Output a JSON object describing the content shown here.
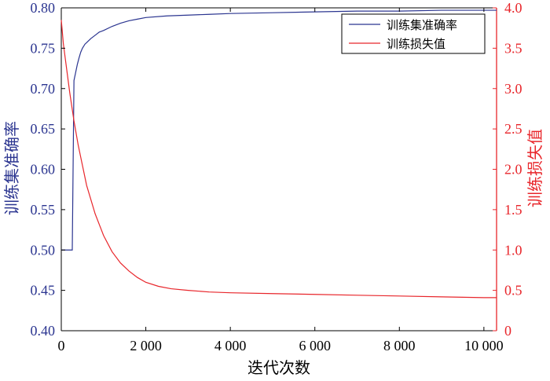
{
  "chart_data": {
    "type": "line",
    "title": "",
    "xlabel": "迭代次数",
    "ylabel_left": "训练集准确率",
    "ylabel_right": "训练损失值",
    "xlim": [
      0,
      10300
    ],
    "ylim_left": [
      0.4,
      0.8
    ],
    "ylim_right": [
      0,
      4.0
    ],
    "x_ticks": [
      0,
      2000,
      4000,
      6000,
      8000,
      10000
    ],
    "x_tick_labels": [
      "0",
      "2 000",
      "4 000",
      "6 000",
      "8 000",
      "10 000"
    ],
    "y_left_ticks": [
      "0.40",
      "0.45",
      "0.50",
      "0.55",
      "0.60",
      "0.65",
      "0.70",
      "0.75",
      "0.80"
    ],
    "y_right_ticks": [
      "0",
      "0.5",
      "1.0",
      "1.5",
      "2.0",
      "2.5",
      "3.0",
      "3.5",
      "4.0"
    ],
    "grid": false,
    "legend_position": "top-right",
    "colors": {
      "accuracy": "#2b3590",
      "loss": "#e8262b",
      "right_axis": "#e8262b",
      "left_label": "#2b3590"
    },
    "series": [
      {
        "name": "训练集准确率",
        "axis": "left",
        "x": [
          0,
          100,
          200,
          260,
          300,
          340,
          380,
          420,
          460,
          500,
          560,
          620,
          700,
          800,
          900,
          1000,
          1200,
          1400,
          1600,
          1800,
          2000,
          2500,
          3000,
          3500,
          4000,
          5000,
          6000,
          7000,
          8000,
          9000,
          10000,
          10300
        ],
        "y": [
          0.5,
          0.5,
          0.5,
          0.5,
          0.71,
          0.72,
          0.73,
          0.738,
          0.745,
          0.75,
          0.755,
          0.758,
          0.762,
          0.766,
          0.77,
          0.772,
          0.777,
          0.781,
          0.784,
          0.786,
          0.788,
          0.79,
          0.791,
          0.792,
          0.793,
          0.794,
          0.795,
          0.796,
          0.796,
          0.797,
          0.797,
          0.797
        ]
      },
      {
        "name": "训练损失值",
        "axis": "right",
        "x": [
          0,
          50,
          100,
          200,
          300,
          400,
          500,
          600,
          800,
          1000,
          1200,
          1400,
          1600,
          1800,
          2000,
          2300,
          2600,
          3000,
          3500,
          4000,
          5000,
          6000,
          7000,
          8000,
          9000,
          10000,
          10300
        ],
        "y": [
          3.85,
          3.55,
          3.35,
          2.95,
          2.6,
          2.3,
          2.05,
          1.8,
          1.45,
          1.18,
          0.98,
          0.84,
          0.74,
          0.66,
          0.6,
          0.55,
          0.52,
          0.5,
          0.48,
          0.47,
          0.46,
          0.45,
          0.44,
          0.43,
          0.42,
          0.41,
          0.41
        ]
      }
    ]
  }
}
